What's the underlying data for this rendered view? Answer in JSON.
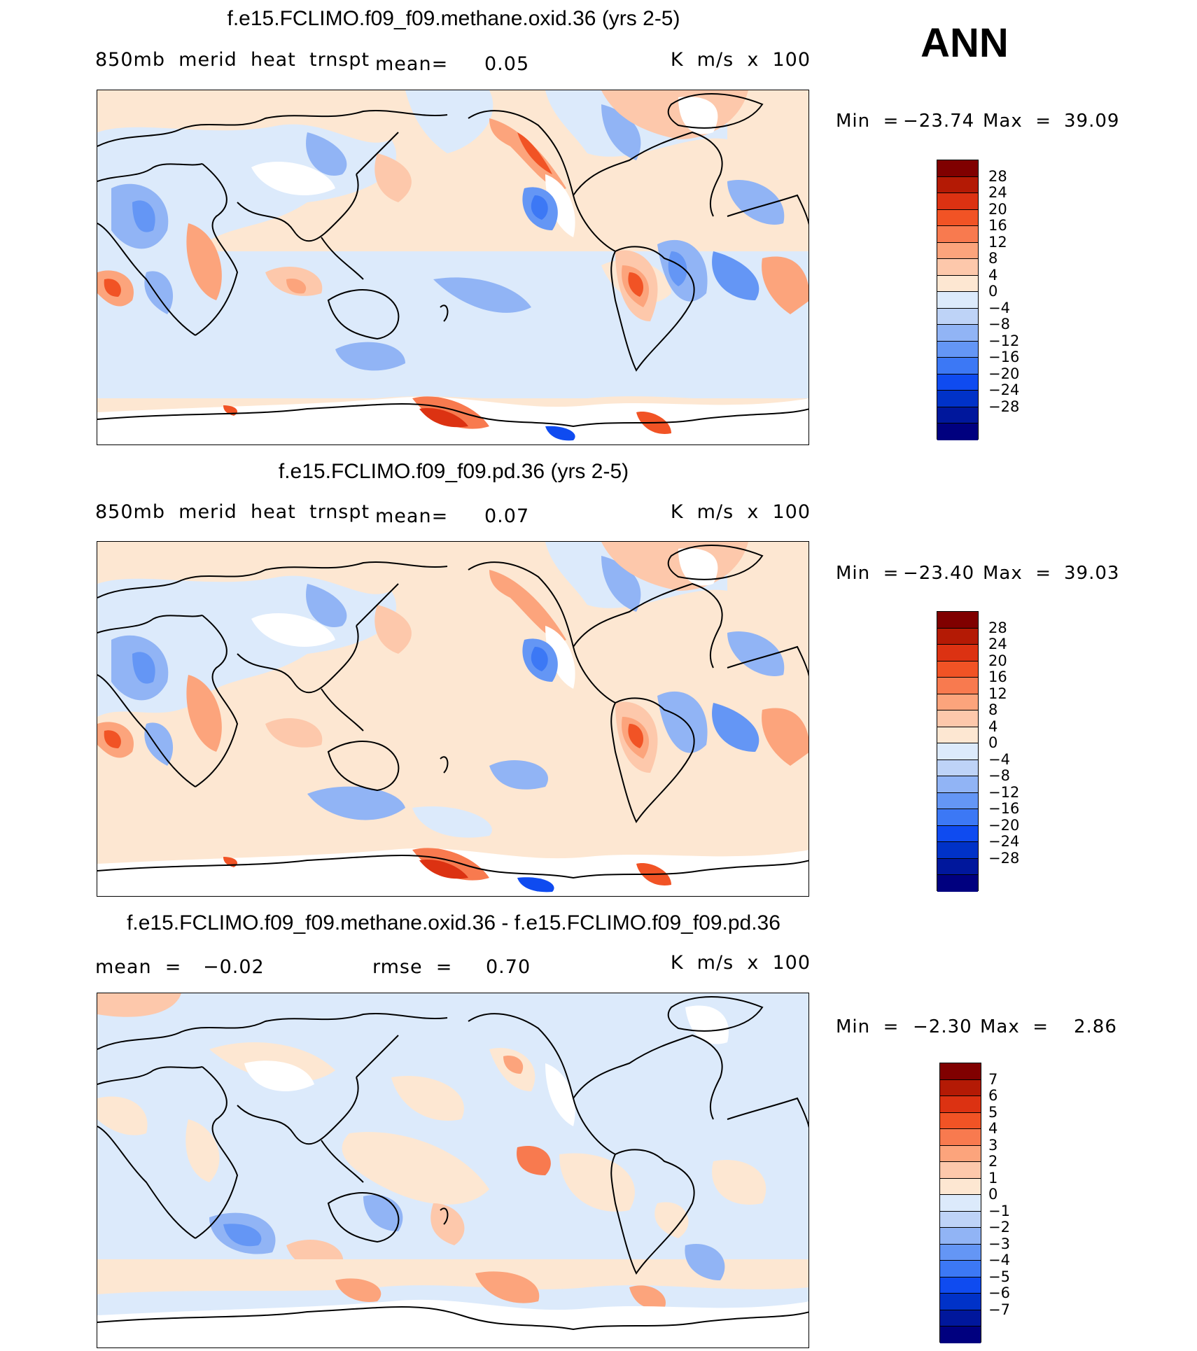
{
  "season": "ANN",
  "colors": {
    "main": [
      "#00007f",
      "#00179c",
      "#0032c8",
      "#0f4bf0",
      "#3c78f5",
      "#6496f5",
      "#91b4f5",
      "#bed3f7",
      "#dceafb",
      "#fde7d2",
      "#fdc8ab",
      "#fca47c",
      "#f87a4f",
      "#f15325",
      "#dc3212",
      "#b41a05",
      "#800000"
    ],
    "diff": [
      "#00007f",
      "#00179c",
      "#0032c8",
      "#0f4bf0",
      "#3c78f5",
      "#6496f5",
      "#91b4f5",
      "#bed3f7",
      "#dceafb",
      "#fde7d2",
      "#fdc8ab",
      "#fca47c",
      "#f87a4f",
      "#f15325",
      "#dc3212",
      "#b41a05",
      "#800000"
    ]
  },
  "panels": [
    {
      "title": "f.e15.FCLIMO.f09_f09.methane.oxid.36 (yrs 2-5)",
      "variable": "850mb  merid  heat  trnspt",
      "mean_label": "mean=",
      "mean_value": "0.05",
      "units": "K  m/s  x  100",
      "min_label": "Min  =",
      "min_value": "−23.74",
      "max_label": "Max  =",
      "max_value": "39.09",
      "levels": [
        "28",
        "24",
        "20",
        "16",
        "12",
        "8",
        "4",
        "0",
        "−4",
        "−8",
        "−12",
        "−16",
        "−20",
        "−24",
        "−28"
      ]
    },
    {
      "title": "f.e15.FCLIMO.f09_f09.pd.36 (yrs 2-5)",
      "variable": "850mb  merid  heat  trnspt",
      "mean_label": "mean=",
      "mean_value": "0.07",
      "units": "K  m/s  x  100",
      "min_label": "Min  =",
      "min_value": "−23.40",
      "max_label": "Max  =",
      "max_value": "39.03",
      "levels": [
        "28",
        "24",
        "20",
        "16",
        "12",
        "8",
        "4",
        "0",
        "−4",
        "−8",
        "−12",
        "−16",
        "−20",
        "−24",
        "−28"
      ]
    },
    {
      "title": "f.e15.FCLIMO.f09_f09.methane.oxid.36 - f.e15.FCLIMO.f09_f09.pd.36",
      "mean_label": "mean  =",
      "mean_value": "−0.02",
      "rmse_label": "rmse  =",
      "rmse_value": "0.70",
      "units": "K  m/s  x  100",
      "min_label": "Min  =",
      "min_value": "−2.30",
      "max_label": "Max  =",
      "max_value": "2.86",
      "levels": [
        "7",
        "6",
        "5",
        "4",
        "3",
        "2",
        "1",
        "0",
        "−1",
        "−2",
        "−3",
        "−4",
        "−5",
        "−6",
        "−7"
      ]
    }
  ]
}
